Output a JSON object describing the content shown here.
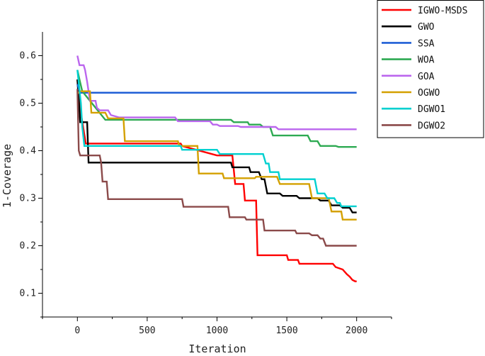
{
  "chart_data": {
    "type": "line",
    "title": "",
    "xlabel": "Iteration",
    "ylabel": "1-Coverage",
    "xlim": [
      -250,
      2250
    ],
    "ylim": [
      0.05,
      0.65
    ],
    "xticks": [
      0,
      500,
      1000,
      1500,
      2000
    ],
    "yticks": [
      0.1,
      0.2,
      0.3,
      0.4,
      0.5,
      0.6
    ],
    "xtick_labels": [
      "0",
      "500",
      "1000",
      "1500",
      "2000"
    ],
    "ytick_labels": [
      "0.1",
      "0.2",
      "0.3",
      "0.4",
      "0.5",
      "0.6"
    ],
    "legend_position": "top-right",
    "series": [
      {
        "name": "IGWO-MSDS",
        "color": "#ff0000",
        "points": [
          [
            0,
            0.55
          ],
          [
            15,
            0.5
          ],
          [
            30,
            0.47
          ],
          [
            60,
            0.415
          ],
          [
            740,
            0.415
          ],
          [
            750,
            0.41
          ],
          [
            1000,
            0.39
          ],
          [
            1110,
            0.39
          ],
          [
            1130,
            0.33
          ],
          [
            1190,
            0.33
          ],
          [
            1200,
            0.295
          ],
          [
            1280,
            0.295
          ],
          [
            1290,
            0.18
          ],
          [
            1500,
            0.18
          ],
          [
            1510,
            0.17
          ],
          [
            1580,
            0.17
          ],
          [
            1590,
            0.162
          ],
          [
            1830,
            0.162
          ],
          [
            1850,
            0.155
          ],
          [
            1900,
            0.15
          ],
          [
            1930,
            0.14
          ],
          [
            1950,
            0.135
          ],
          [
            1970,
            0.128
          ],
          [
            1990,
            0.125
          ],
          [
            2000,
            0.125
          ]
        ]
      },
      {
        "name": "GWO",
        "color": "#000000",
        "points": [
          [
            0,
            0.55
          ],
          [
            20,
            0.46
          ],
          [
            70,
            0.46
          ],
          [
            80,
            0.375
          ],
          [
            1100,
            0.375
          ],
          [
            1110,
            0.365
          ],
          [
            1230,
            0.365
          ],
          [
            1240,
            0.355
          ],
          [
            1300,
            0.355
          ],
          [
            1320,
            0.34
          ],
          [
            1340,
            0.34
          ],
          [
            1360,
            0.31
          ],
          [
            1450,
            0.31
          ],
          [
            1470,
            0.305
          ],
          [
            1570,
            0.305
          ],
          [
            1590,
            0.3
          ],
          [
            1720,
            0.3
          ],
          [
            1740,
            0.295
          ],
          [
            1800,
            0.295
          ],
          [
            1820,
            0.285
          ],
          [
            1880,
            0.285
          ],
          [
            1900,
            0.28
          ],
          [
            1950,
            0.28
          ],
          [
            1970,
            0.27
          ],
          [
            2000,
            0.27
          ]
        ]
      },
      {
        "name": "SSA",
        "color": "#1f5fd6",
        "points": [
          [
            0,
            0.54
          ],
          [
            20,
            0.522
          ],
          [
            2000,
            0.522
          ]
        ]
      },
      {
        "name": "WOA",
        "color": "#2eaa52",
        "points": [
          [
            0,
            0.57
          ],
          [
            15,
            0.55
          ],
          [
            35,
            0.525
          ],
          [
            200,
            0.465
          ],
          [
            1100,
            0.465
          ],
          [
            1120,
            0.46
          ],
          [
            1220,
            0.46
          ],
          [
            1230,
            0.455
          ],
          [
            1310,
            0.455
          ],
          [
            1330,
            0.45
          ],
          [
            1380,
            0.45
          ],
          [
            1400,
            0.432
          ],
          [
            1650,
            0.432
          ],
          [
            1670,
            0.42
          ],
          [
            1720,
            0.42
          ],
          [
            1740,
            0.41
          ],
          [
            1850,
            0.41
          ],
          [
            1870,
            0.408
          ],
          [
            2000,
            0.408
          ]
        ]
      },
      {
        "name": "GOA",
        "color": "#bb66ee",
        "points": [
          [
            0,
            0.6
          ],
          [
            15,
            0.58
          ],
          [
            45,
            0.58
          ],
          [
            55,
            0.57
          ],
          [
            70,
            0.545
          ],
          [
            90,
            0.505
          ],
          [
            130,
            0.505
          ],
          [
            140,
            0.49
          ],
          [
            160,
            0.485
          ],
          [
            220,
            0.485
          ],
          [
            240,
            0.475
          ],
          [
            300,
            0.47
          ],
          [
            700,
            0.47
          ],
          [
            720,
            0.462
          ],
          [
            950,
            0.462
          ],
          [
            970,
            0.455
          ],
          [
            1000,
            0.455
          ],
          [
            1020,
            0.452
          ],
          [
            1150,
            0.452
          ],
          [
            1170,
            0.45
          ],
          [
            1420,
            0.45
          ],
          [
            1440,
            0.445
          ],
          [
            2000,
            0.445
          ]
        ]
      },
      {
        "name": "OGWO",
        "color": "#d4a000",
        "points": [
          [
            0,
            0.52
          ],
          [
            20,
            0.525
          ],
          [
            90,
            0.525
          ],
          [
            100,
            0.48
          ],
          [
            200,
            0.48
          ],
          [
            220,
            0.468
          ],
          [
            330,
            0.468
          ],
          [
            340,
            0.42
          ],
          [
            720,
            0.42
          ],
          [
            730,
            0.41
          ],
          [
            860,
            0.41
          ],
          [
            870,
            0.352
          ],
          [
            1040,
            0.352
          ],
          [
            1050,
            0.342
          ],
          [
            1270,
            0.342
          ],
          [
            1280,
            0.345
          ],
          [
            1430,
            0.345
          ],
          [
            1450,
            0.33
          ],
          [
            1660,
            0.33
          ],
          [
            1680,
            0.3
          ],
          [
            1800,
            0.3
          ],
          [
            1820,
            0.272
          ],
          [
            1890,
            0.272
          ],
          [
            1900,
            0.255
          ],
          [
            2000,
            0.255
          ]
        ]
      },
      {
        "name": "DGWO1",
        "color": "#00d0d0",
        "points": [
          [
            0,
            0.57
          ],
          [
            25,
            0.5
          ],
          [
            35,
            0.45
          ],
          [
            50,
            0.41
          ],
          [
            740,
            0.41
          ],
          [
            750,
            0.402
          ],
          [
            1000,
            0.402
          ],
          [
            1020,
            0.393
          ],
          [
            1330,
            0.393
          ],
          [
            1350,
            0.373
          ],
          [
            1370,
            0.373
          ],
          [
            1380,
            0.355
          ],
          [
            1440,
            0.355
          ],
          [
            1450,
            0.34
          ],
          [
            1700,
            0.34
          ],
          [
            1720,
            0.31
          ],
          [
            1770,
            0.31
          ],
          [
            1790,
            0.3
          ],
          [
            1840,
            0.3
          ],
          [
            1860,
            0.29
          ],
          [
            1880,
            0.29
          ],
          [
            1890,
            0.283
          ],
          [
            2000,
            0.283
          ]
        ]
      },
      {
        "name": "DGWO2",
        "color": "#8b4a4a",
        "points": [
          [
            0,
            0.53
          ],
          [
            10,
            0.4
          ],
          [
            20,
            0.39
          ],
          [
            160,
            0.39
          ],
          [
            170,
            0.375
          ],
          [
            180,
            0.335
          ],
          [
            210,
            0.335
          ],
          [
            220,
            0.298
          ],
          [
            750,
            0.298
          ],
          [
            760,
            0.282
          ],
          [
            1080,
            0.282
          ],
          [
            1090,
            0.26
          ],
          [
            1200,
            0.26
          ],
          [
            1210,
            0.255
          ],
          [
            1330,
            0.255
          ],
          [
            1340,
            0.232
          ],
          [
            1560,
            0.232
          ],
          [
            1570,
            0.226
          ],
          [
            1660,
            0.226
          ],
          [
            1680,
            0.222
          ],
          [
            1720,
            0.222
          ],
          [
            1740,
            0.215
          ],
          [
            1760,
            0.215
          ],
          [
            1780,
            0.2
          ],
          [
            2000,
            0.2
          ]
        ]
      }
    ]
  }
}
